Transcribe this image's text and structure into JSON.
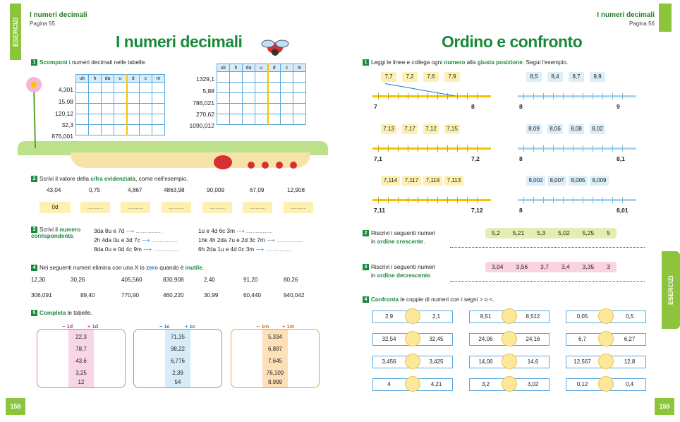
{
  "left": {
    "tab": "ESERCIZI",
    "header_title": "I numeri decimali",
    "header_page": "Pagina 55",
    "title": "I numeri decimali",
    "page_number": "158",
    "ex1": {
      "num": "1",
      "verb": "Scomponi",
      "rest": " i numeri decimali nelle tabelle.",
      "headers": [
        "uk",
        "h",
        "da",
        "u",
        "d",
        "c",
        "m"
      ],
      "left_numbers": [
        "4,301",
        "15,08",
        "120,12",
        "32,3",
        "876,001"
      ],
      "right_numbers": [
        "1329,1",
        "5,88",
        "786,021",
        "270,62",
        "1090,012"
      ]
    },
    "ex2": {
      "num": "2",
      "pre": "Scrivi il valore della ",
      "bold": "cifra evidenziata",
      "post": ", come nell'esempio.",
      "items": [
        "43,04",
        "0,75",
        "4,867",
        "4863,98",
        "90,009",
        "67,09",
        "12,908"
      ],
      "answer": "0d"
    },
    "ex3": {
      "num": "3",
      "pre": "Scrivi il ",
      "bold": "numero corrispondente",
      "post": ".",
      "left": [
        "3da 8u e 7d",
        "2h 4da 0u e 3d 7c",
        "8da 0u e 0d 4c 9m"
      ],
      "right": [
        "1u e 4d 6c 3m",
        "1hk 4h 2da 7u e 2d 3c 7m",
        "6h 2da 1u e 4d 0c 3m"
      ]
    },
    "ex4": {
      "num": "4",
      "pre": "Nei seguenti numeri elimina con una ",
      "x": "X",
      "mid": " lo ",
      "zero": "zero",
      "mid2": " quando è ",
      "inutile": "inutile",
      "post": ".",
      "row1": [
        "12,30",
        "30,26",
        "405,560",
        "830,908",
        "2,40",
        "91,20",
        "80,26"
      ],
      "row2": [
        "306,091",
        "89,40",
        "770,90",
        "460,220",
        "30,99",
        "60,440",
        "940,042"
      ]
    },
    "ex5": {
      "num": "5",
      "bold": "Completa",
      "rest": " le tabelle.",
      "t1": {
        "l": "− 1d",
        "r": "+ 1d",
        "values": [
          "22,3",
          "78,7",
          "43,6",
          "3,25",
          "12"
        ]
      },
      "t2": {
        "l": "− 1c",
        "r": "+ 1c",
        "values": [
          "71,35",
          "98,22",
          "6,776",
          "2,39",
          "54"
        ]
      },
      "t3": {
        "l": "− 1m",
        "r": "+ 1m",
        "values": [
          "5,334",
          "6,897",
          "7,645",
          "76,109",
          "8,999"
        ]
      }
    }
  },
  "right": {
    "tab": "ESERCIZI",
    "header_title": "I numeri decimali",
    "header_page": "Pagina 56",
    "title": "Ordino e confronto",
    "page_number": "159",
    "ex1": {
      "num": "1",
      "pre": "Leggi le linee e collega ogni ",
      "b1": "numero",
      "mid": " alla ",
      "b2": "giusta posizione",
      "post": ". Segui l'esempio.",
      "groups": [
        {
          "chips": [
            "7,7",
            "7,2",
            "7,6",
            "7,9"
          ],
          "start": "7",
          "end": "8"
        },
        {
          "chips": [
            "8,5",
            "8,4",
            "8,7",
            "8,9"
          ],
          "start": "8",
          "end": "9"
        },
        {
          "chips": [
            "7,13",
            "7,17",
            "7,12",
            "7,15"
          ],
          "start": "7,1",
          "end": "7,2"
        },
        {
          "chips": [
            "8,09",
            "8,06",
            "8,08",
            "8,02"
          ],
          "start": "8",
          "end": "8,1"
        },
        {
          "chips": [
            "7,114",
            "7,117",
            "7,119",
            "7,113"
          ],
          "start": "7,11",
          "end": "7,12"
        },
        {
          "chips": [
            "8,002",
            "8,007",
            "8,005",
            "8,009"
          ],
          "start": "8",
          "end": "8,01"
        }
      ]
    },
    "ex2": {
      "num": "2",
      "l1": "Riscrivi i seguenti numeri",
      "l2pre": "in ",
      "l2b": "ordine crescente",
      "l2post": ".",
      "values": [
        "5,2",
        "5,21",
        "5,3",
        "5,02",
        "5,25",
        "5"
      ]
    },
    "ex3": {
      "num": "3",
      "l1": "Riscrivi i seguenti numeri",
      "l2pre": "in ",
      "l2b": "ordine decrescente",
      "l2post": ".",
      "values": [
        "3,04",
        "3,56",
        "3,7",
        "3,4",
        "3,35",
        "3"
      ]
    },
    "ex4": {
      "num": "4",
      "bold": "Confronta",
      "rest": " le coppie di numeri con i segni > o <.",
      "pairs": [
        [
          "2,9",
          "2,1"
        ],
        [
          "8,51",
          "8,512"
        ],
        [
          "0,05",
          "0,5"
        ],
        [
          "32,54",
          "32,45"
        ],
        [
          "24,06",
          "24,16"
        ],
        [
          "6,7",
          "6,27"
        ],
        [
          "3,456",
          "3,425"
        ],
        [
          "14,06",
          "14,6"
        ],
        [
          "12,567",
          "12,8"
        ],
        [
          "4",
          "4,21"
        ],
        [
          "3,2",
          "3,02"
        ],
        [
          "0,12",
          "0,4"
        ]
      ]
    }
  },
  "colors": {
    "green": "#1a8a3a",
    "lime": "#8cc43c",
    "blue": "#5aa8dc",
    "yellow": "#f5c300",
    "pink": "#e07ab0",
    "orange": "#f0a040"
  }
}
